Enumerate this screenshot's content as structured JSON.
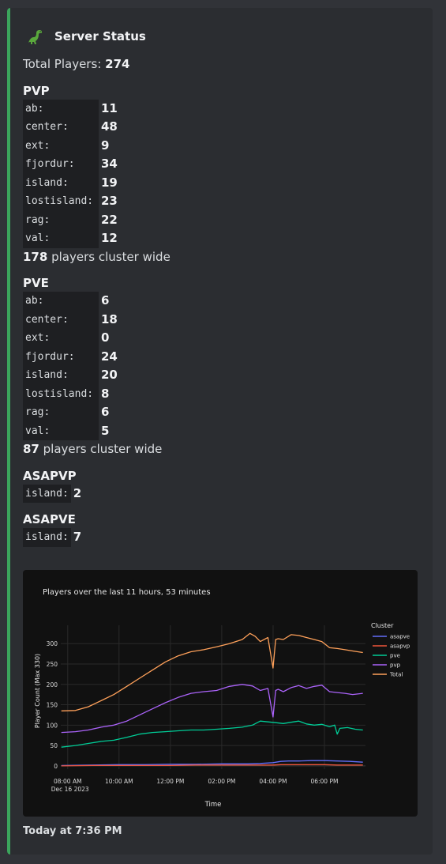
{
  "embed": {
    "author": "Server Status",
    "total_label": "Total Players:",
    "total_value": "274",
    "sections": {
      "pvp": {
        "title": "PVP",
        "rows": [
          {
            "key": "ab:",
            "value": "11"
          },
          {
            "key": "center:",
            "value": "48"
          },
          {
            "key": "ext:",
            "value": "9"
          },
          {
            "key": "fjordur:",
            "value": "34"
          },
          {
            "key": "island:",
            "value": "19"
          },
          {
            "key": "lostisland:",
            "value": "23"
          },
          {
            "key": "rag:",
            "value": "22"
          },
          {
            "key": "val:",
            "value": "12"
          }
        ],
        "summary_value": "178",
        "summary_text": "players cluster wide"
      },
      "pve": {
        "title": "PVE",
        "rows": [
          {
            "key": "ab:",
            "value": "6"
          },
          {
            "key": "center:",
            "value": "18"
          },
          {
            "key": "ext:",
            "value": "0"
          },
          {
            "key": "fjordur:",
            "value": "24"
          },
          {
            "key": "island:",
            "value": "20"
          },
          {
            "key": "lostisland:",
            "value": "8"
          },
          {
            "key": "rag:",
            "value": "6"
          },
          {
            "key": "val:",
            "value": "5"
          }
        ],
        "summary_value": "87",
        "summary_text": "players cluster wide"
      },
      "asapvp": {
        "title": "ASAPVP",
        "rows": [
          {
            "key": "island:",
            "value": "2"
          }
        ]
      },
      "asapve": {
        "title": "ASAPVE",
        "rows": [
          {
            "key": "island:",
            "value": "7"
          }
        ]
      }
    },
    "footer": "Today at 7:36 PM",
    "accent_color": "#3ba55c"
  },
  "chart_data": {
    "type": "line",
    "title": "Players over the last 11 hours, 53 minutes",
    "xlabel": "Time",
    "ylabel": "Player Count (Max 330)",
    "xlim": [
      7.73,
      19.6
    ],
    "ylim": [
      -8,
      345
    ],
    "x_ticks": [
      8,
      10,
      12,
      14,
      16,
      18
    ],
    "x_tick_labels": [
      "08:00 AM",
      "10:00 AM",
      "12:00 PM",
      "02:00 PM",
      "04:00 PM",
      "06:00 PM"
    ],
    "x_date_label": "Dec 16 2023",
    "y_ticks": [
      0,
      50,
      100,
      150,
      200,
      250,
      300
    ],
    "legend_title": "Cluster",
    "legend_position": "right",
    "grid": true,
    "series": [
      {
        "name": "asapve",
        "color": "#636efa",
        "x": [
          7.75,
          9,
          10,
          11,
          12,
          13,
          14,
          15,
          15.5,
          16,
          16.3,
          16.6,
          17,
          17.5,
          18,
          18.5,
          19,
          19.5
        ],
        "y": [
          1,
          2,
          3,
          3,
          4,
          4,
          5,
          5,
          6,
          8,
          11,
          12,
          12,
          13,
          13,
          12,
          11,
          9
        ]
      },
      {
        "name": "asapvp",
        "color": "#ef553b",
        "x": [
          7.75,
          9,
          10,
          11,
          12,
          13,
          14,
          15,
          15.5,
          16,
          16.3,
          16.6,
          17,
          17.5,
          18,
          18.5,
          19,
          19.5
        ],
        "y": [
          0,
          1,
          1,
          1,
          1,
          2,
          2,
          2,
          2,
          2,
          3,
          3,
          3,
          3,
          3,
          2,
          2,
          2
        ]
      },
      {
        "name": "pve",
        "color": "#00cc96",
        "x": [
          7.75,
          8.3,
          8.8,
          9.3,
          9.8,
          10.3,
          10.8,
          11.3,
          11.8,
          12.3,
          12.8,
          13.3,
          13.8,
          14.3,
          14.8,
          15.2,
          15.5,
          15.8,
          16.1,
          16.4,
          16.7,
          17,
          17.3,
          17.6,
          17.9,
          18.2,
          18.4,
          18.5,
          18.6,
          18.9,
          19.2,
          19.5
        ],
        "y": [
          46,
          50,
          55,
          60,
          63,
          70,
          78,
          82,
          84,
          86,
          88,
          88,
          90,
          92,
          95,
          100,
          110,
          108,
          106,
          104,
          107,
          110,
          103,
          100,
          102,
          96,
          100,
          78,
          92,
          94,
          90,
          88
        ]
      },
      {
        "name": "pvp",
        "color": "#ab63fa",
        "x": [
          7.75,
          8.3,
          8.8,
          9.3,
          9.8,
          10.3,
          10.8,
          11.3,
          11.8,
          12.3,
          12.8,
          13.3,
          13.8,
          14.3,
          14.8,
          15.2,
          15.5,
          15.8,
          16.0,
          16.1,
          16.2,
          16.4,
          16.7,
          17,
          17.3,
          17.6,
          17.9,
          18.2,
          18.5,
          18.8,
          19.1,
          19.5
        ],
        "y": [
          82,
          84,
          88,
          95,
          100,
          110,
          125,
          140,
          155,
          168,
          178,
          182,
          185,
          195,
          200,
          196,
          185,
          190,
          120,
          185,
          188,
          182,
          192,
          197,
          190,
          195,
          198,
          182,
          180,
          178,
          175,
          178
        ]
      },
      {
        "name": "Total",
        "color": "#ffa15a",
        "x": [
          7.75,
          8.3,
          8.8,
          9.3,
          9.8,
          10.3,
          10.8,
          11.3,
          11.8,
          12.3,
          12.8,
          13.3,
          13.8,
          14.3,
          14.8,
          15.1,
          15.3,
          15.5,
          15.8,
          16.0,
          16.1,
          16.2,
          16.4,
          16.7,
          17,
          17.3,
          17.6,
          17.9,
          18.2,
          18.5,
          18.8,
          19.1,
          19.5
        ],
        "y": [
          135,
          136,
          145,
          160,
          175,
          195,
          215,
          235,
          255,
          270,
          280,
          285,
          292,
          300,
          310,
          325,
          318,
          305,
          315,
          240,
          310,
          312,
          310,
          322,
          320,
          315,
          310,
          305,
          290,
          288,
          285,
          282,
          278
        ]
      }
    ]
  }
}
